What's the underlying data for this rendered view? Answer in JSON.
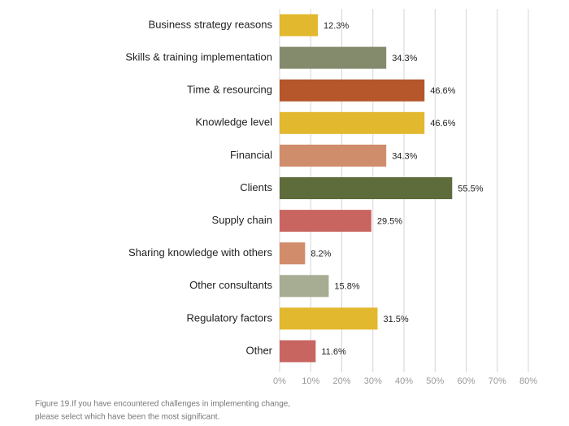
{
  "chart_data": {
    "type": "barh",
    "categories": [
      "Business strategy reasons",
      "Skills & training implementation",
      "Time & resourcing",
      "Knowledge level",
      "Financial",
      "Clients",
      "Supply chain",
      "Sharing knowledge with others",
      "Other consultants",
      "Regulatory factors",
      "Other"
    ],
    "values": [
      12.3,
      34.3,
      46.6,
      46.6,
      34.3,
      55.5,
      29.5,
      8.2,
      15.8,
      31.5,
      11.6
    ],
    "value_labels": [
      "12.3%",
      "34.3%",
      "46.6%",
      "46.6%",
      "34.3%",
      "55.5%",
      "29.5%",
      "8.2%",
      "15.8%",
      "31.5%",
      "11.6%"
    ],
    "colors": [
      "#e2b82e",
      "#838b6c",
      "#b5562b",
      "#e2b82e",
      "#cf8d6c",
      "#5e6b3b",
      "#c96561",
      "#d08c6b",
      "#a6ad93",
      "#e2b82e",
      "#c96561"
    ],
    "xlim": [
      0,
      80
    ],
    "xticks": [
      {
        "value": 0,
        "label": "0%"
      },
      {
        "value": 10,
        "label": "10%"
      },
      {
        "value": 20,
        "label": "20%"
      },
      {
        "value": 30,
        "label": "30%"
      },
      {
        "value": 40,
        "label": "40%"
      },
      {
        "value": 50,
        "label": "50%"
      },
      {
        "value": 60,
        "label": "60%"
      },
      {
        "value": 70,
        "label": "70%"
      },
      {
        "value": 80,
        "label": "80%"
      }
    ],
    "grid": true,
    "caption": [
      "Figure 19.If you have encountered challenges in implementing change,",
      "please select which have been the most significant."
    ]
  }
}
